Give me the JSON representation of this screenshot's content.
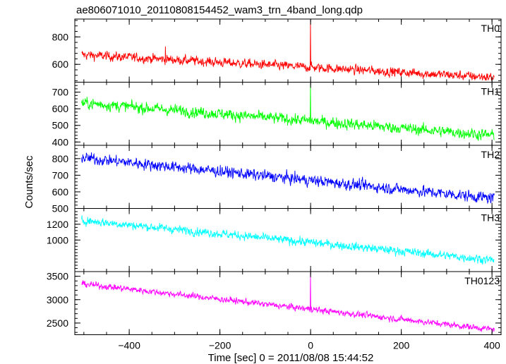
{
  "title": "ae806071010_20110808154452_wam3_trn_4band_long.qdp",
  "xlabel": "Time [sec] 0 = 2011/08/08 15:44:52",
  "ylabel": "Counts/sec",
  "chart_data": {
    "type": "line",
    "title": "ae806071010_20110808154452_wam3_trn_4band_long.qdp",
    "xlabel": "Time [sec] 0 = 2011/08/08 15:44:52",
    "ylabel": "Counts/sec",
    "xlim": [
      -520,
      420
    ],
    "x_ticks": [
      -400,
      -200,
      0,
      200,
      400
    ],
    "x_tick_labels": [
      "−400",
      "−200",
      "0",
      "200",
      "400"
    ],
    "x_data_range": [
      -505,
      405
    ],
    "grid": false,
    "panels": [
      {
        "name": "TH0",
        "color": "#ff0000",
        "ylim": [
          470,
          930
        ],
        "y_ticks": [
          600,
          800
        ],
        "y_tick_labels": [
          "600",
          "800"
        ],
        "trend_start": 670,
        "trend_end": 505,
        "noise": 28,
        "spikes": [
          {
            "x": -320,
            "y": 730
          },
          {
            "x": 0,
            "y": 925
          },
          {
            "x": 2,
            "y": 620
          }
        ]
      },
      {
        "name": "TH1",
        "color": "#00ff00",
        "ylim": [
          380,
          760
        ],
        "y_ticks": [
          400,
          500,
          600,
          700
        ],
        "y_tick_labels": [
          "400",
          "500",
          "600",
          "700"
        ],
        "trend_start": 635,
        "trend_end": 440,
        "noise": 28,
        "spikes": [
          {
            "x": 0,
            "y": 755
          }
        ]
      },
      {
        "name": "TH2",
        "color": "#0000ff",
        "ylim": [
          500,
          880
        ],
        "y_ticks": [
          500,
          600,
          700,
          800
        ],
        "y_tick_labels": [
          "500",
          "600",
          "700",
          "800"
        ],
        "trend_start": 805,
        "trend_end": 560,
        "noise": 28,
        "spikes": []
      },
      {
        "name": "TH3",
        "color": "#00ffff",
        "ylim": [
          600,
          1400
        ],
        "y_ticks": [
          1000,
          1200
        ],
        "y_tick_labels": [
          "1000",
          "1200"
        ],
        "trend_start": 1250,
        "trend_end": 745,
        "noise": 45,
        "spikes": []
      },
      {
        "name": "TH0123",
        "color": "#ff00ff",
        "ylim": [
          2250,
          3600
        ],
        "y_ticks": [
          2500,
          3000,
          3500
        ],
        "y_tick_labels": [
          "2500",
          "3000",
          "3500"
        ],
        "trend_start": 3340,
        "trend_end": 2360,
        "noise": 55,
        "spikes": [
          {
            "x": 0,
            "y": 3580
          },
          {
            "x": 2,
            "y": 2850
          }
        ]
      }
    ]
  }
}
